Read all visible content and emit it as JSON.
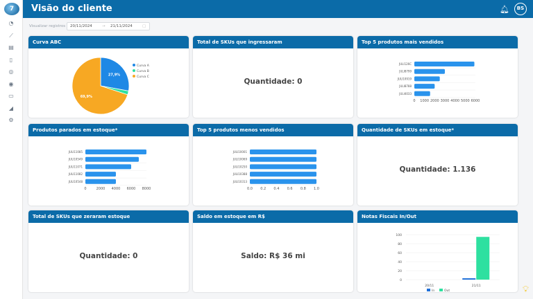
{
  "header": {
    "title": "Visão do cliente",
    "user_initials": "BS"
  },
  "sidebar": {
    "icons": [
      "dashboard-icon",
      "chart-line-icon",
      "document-icon",
      "file-icon",
      "dollar-icon",
      "camera-icon",
      "folder-icon",
      "rss-icon",
      "settings-icon"
    ]
  },
  "filter": {
    "label": "Visualizar registros",
    "start": "20/11/2024",
    "end": "21/11/2024"
  },
  "cards": {
    "abc": {
      "title": "Curva ABC"
    },
    "skus_in": {
      "title": "Total de SKUs que ingressaram",
      "value": "Quantidade: 0"
    },
    "top5": {
      "title": "Top 5 produtos mais vendidos"
    },
    "parados": {
      "title": "Produtos parados em estoque*"
    },
    "bottom5": {
      "title": "Top 5 produtos menos vendidos"
    },
    "qtd_skus": {
      "title": "Quantidade de SKUs em estoque*",
      "value": "Quantidade: 1.136"
    },
    "zerados": {
      "title": "Total de SKUs que zeraram estoque",
      "value": "Quantidade: 0"
    },
    "saldo": {
      "title": "Saldo em estoque em R$",
      "value": "Saldo: R$ 36 mi"
    },
    "notas": {
      "title": "Notas Fiscais In/Out"
    }
  },
  "chart_data": [
    {
      "id": "abc",
      "type": "pie",
      "categories": [
        "Curva A",
        "Curva B",
        "Curva C"
      ],
      "values": [
        27.9,
        2.2,
        69.9
      ],
      "labels": [
        "27,9%",
        "",
        "69,9%"
      ],
      "colors": [
        "#1e88e5",
        "#2ee0a0",
        "#f7a823"
      ],
      "legend": "right"
    },
    {
      "id": "top5",
      "type": "bar",
      "orientation": "horizontal",
      "categories": [
        "JULI126C",
        "JULI8799",
        "JULI10919",
        "JULI8788",
        "JULI4033"
      ],
      "values": [
        5900,
        3000,
        2500,
        2000,
        1550
      ],
      "xlim": [
        0,
        6000
      ],
      "ticks": [
        0,
        1000,
        2000,
        3000,
        4000,
        5000,
        6000
      ],
      "color": "#2a93ec"
    },
    {
      "id": "parados",
      "type": "bar",
      "orientation": "horizontal",
      "categories": [
        "JULI11085",
        "JULI10549",
        "JULI11071",
        "JULI11082",
        "JULI10548"
      ],
      "values": [
        8000,
        7000,
        6000,
        4000,
        4000
      ],
      "xlim": [
        0,
        8000
      ],
      "ticks": [
        0,
        2000,
        4000,
        6000,
        8000
      ],
      "color": "#2a93ec"
    },
    {
      "id": "bottom5",
      "type": "bar",
      "orientation": "horizontal",
      "categories": [
        "JULI10001",
        "JULI10069",
        "JULI10250",
        "JULI10388",
        "JULI10313"
      ],
      "values": [
        1,
        1,
        1,
        1,
        1
      ],
      "xlim": [
        0,
        1
      ],
      "ticks": [
        "0.0",
        "0.2",
        "0.4",
        "0.6",
        "0.8",
        "1.0"
      ],
      "color": "#2a93ec"
    },
    {
      "id": "notas",
      "type": "bar",
      "categories": [
        "20/11",
        "21/11"
      ],
      "series": [
        {
          "name": "In",
          "values": [
            0,
            3
          ],
          "color": "#1e6fd9"
        },
        {
          "name": "Out",
          "values": [
            0,
            95
          ],
          "color": "#2ee0a0"
        }
      ],
      "ylim": [
        0,
        100
      ],
      "ticks": [
        0,
        20,
        40,
        60,
        80,
        100
      ],
      "legend": "bottom"
    }
  ]
}
